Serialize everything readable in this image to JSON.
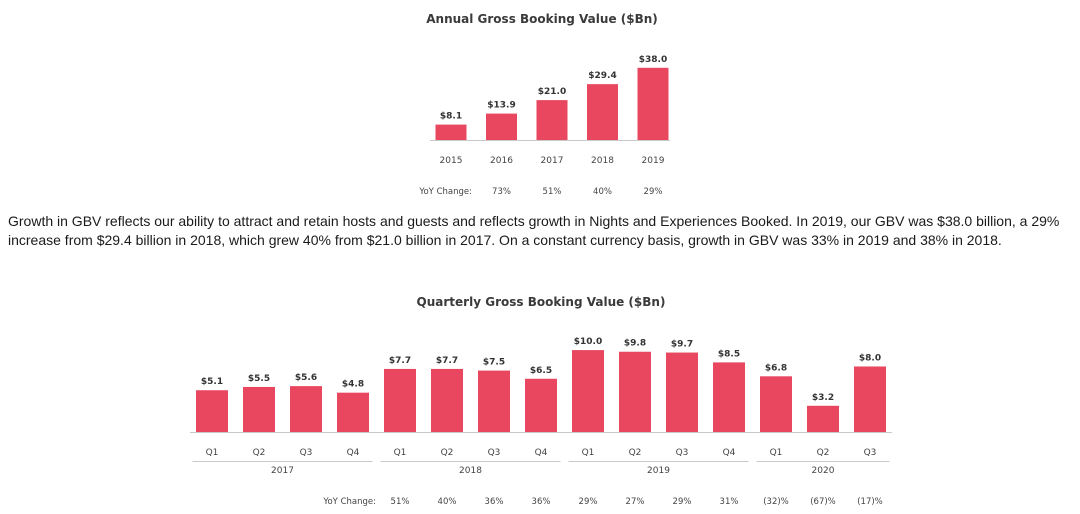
{
  "chart_data": [
    {
      "type": "bar",
      "title": "Annual Gross Booking Value ($Bn)",
      "categories": [
        "2015",
        "2016",
        "2017",
        "2018",
        "2019"
      ],
      "values": [
        8.1,
        13.9,
        21.0,
        29.4,
        38.0
      ],
      "value_labels": [
        "$8.1",
        "$13.9",
        "$21.0",
        "$29.4",
        "$38.0"
      ],
      "yoy_label": "YoY Change:",
      "yoy": [
        "",
        "73%",
        "51%",
        "40%",
        "29%"
      ],
      "bar_color": "#e8475f",
      "ylim": [
        0,
        40
      ],
      "grid": false
    },
    {
      "type": "bar",
      "title": "Quarterly Gross Booking Value ($Bn)",
      "categories": [
        "Q1",
        "Q2",
        "Q3",
        "Q4",
        "Q1",
        "Q2",
        "Q3",
        "Q4",
        "Q1",
        "Q2",
        "Q3",
        "Q4",
        "Q1",
        "Q2",
        "Q3"
      ],
      "years": [
        "2017",
        "2018",
        "2019",
        "2020"
      ],
      "values": [
        5.1,
        5.5,
        5.6,
        4.8,
        7.7,
        7.7,
        7.5,
        6.5,
        10.0,
        9.8,
        9.7,
        8.5,
        6.8,
        3.2,
        8.0
      ],
      "value_labels": [
        "$5.1",
        "$5.5",
        "$5.6",
        "$4.8",
        "$7.7",
        "$7.7",
        "$7.5",
        "$6.5",
        "$10.0",
        "$9.8",
        "$9.7",
        "$8.5",
        "$6.8",
        "$3.2",
        "$8.0"
      ],
      "yoy_label": "YoY Change:",
      "yoy": [
        "",
        "",
        "",
        "",
        "51%",
        "40%",
        "36%",
        "36%",
        "29%",
        "27%",
        "29%",
        "31%",
        "(32)%",
        "(67)%",
        "(17)%"
      ],
      "bar_color": "#e8475f",
      "ylim": [
        0,
        10.5
      ],
      "grid": false
    }
  ],
  "paragraph": "Growth in GBV reflects our ability to attract and retain hosts and guests and reflects growth in Nights and Experiences Booked. In 2019, our GBV was $38.0 billion, a 29% increase from $29.4 billion in 2018, which grew 40% from $21.0 billion in 2017. On a constant currency basis, growth in GBV was 33% in 2019 and 38% in 2018."
}
